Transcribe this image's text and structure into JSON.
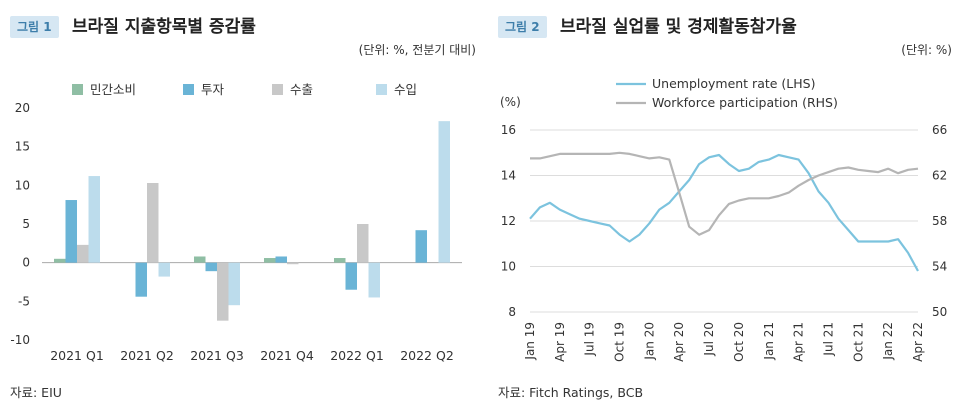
{
  "figures": [
    {
      "badge": "그림 1",
      "title": "브라질 지출항목별 증감률",
      "unit": "(단위: %, 전분기 대비)",
      "source": "자료: EIU"
    },
    {
      "badge": "그림 2",
      "title": "브라질 실업률 및 경제활동참가율",
      "unit": "(단위: %)",
      "source": "자료: Fitch Ratings, BCB"
    }
  ],
  "chart_data": [
    {
      "type": "bar",
      "categories": [
        "2021 Q1",
        "2021 Q2",
        "2021 Q3",
        "2021 Q4",
        "2022 Q1",
        "2022 Q2"
      ],
      "series": [
        {
          "name": "민간소비",
          "color": "#8fbea4",
          "values": [
            0.5,
            0.0,
            0.8,
            0.6,
            0.6,
            0.0
          ]
        },
        {
          "name": "투자",
          "color": "#6ab4d6",
          "values": [
            8.1,
            -4.4,
            -1.1,
            0.8,
            -3.5,
            4.2
          ]
        },
        {
          "name": "수출",
          "color": "#c8c8c8",
          "values": [
            2.3,
            10.3,
            -7.5,
            -0.2,
            5.0,
            0.0
          ]
        },
        {
          "name": "수입",
          "color": "#bcdcec",
          "values": [
            11.2,
            -1.8,
            -5.5,
            0.0,
            -4.5,
            18.3
          ]
        }
      ],
      "yticks": [
        "20",
        "15",
        "10",
        "5",
        "0",
        "-5",
        "-10"
      ],
      "ylim": [
        -10,
        20
      ],
      "legend": "top"
    },
    {
      "type": "line",
      "x": [
        "Jan 19",
        "Feb 19",
        "Mar 19",
        "Apr 19",
        "May 19",
        "Jun 19",
        "Jul 19",
        "Aug 19",
        "Sep 19",
        "Oct 19",
        "Nov 19",
        "Dec 19",
        "Jan 20",
        "Feb 20",
        "Mar 20",
        "Apr 20",
        "May 20",
        "Jun 20",
        "Jul 20",
        "Aug 20",
        "Sep 20",
        "Oct 20",
        "Nov 20",
        "Dec 20",
        "Jan 21",
        "Feb 21",
        "Mar 21",
        "Apr 21",
        "May 21",
        "Jun 21",
        "Jul 21",
        "Aug 21",
        "Sep 21",
        "Oct 21",
        "Nov 21",
        "Dec 21",
        "Jan 22",
        "Feb 22",
        "Mar 22",
        "Apr 22"
      ],
      "xtick_labels": [
        "Jan 19",
        "Apr 19",
        "Jul 19",
        "Oct 19",
        "Jan 20",
        "Apr 20",
        "Jul 20",
        "Oct 20",
        "Jan 21",
        "Apr 21",
        "Jul 21",
        "Oct 21",
        "Jan 22",
        "Apr 22"
      ],
      "series": [
        {
          "name": "Unemployment rate (LHS)",
          "axis": "left",
          "color": "#7cc3de",
          "values": [
            12.1,
            12.6,
            12.8,
            12.5,
            12.3,
            12.1,
            12.0,
            11.9,
            11.8,
            11.4,
            11.1,
            11.4,
            11.9,
            12.5,
            12.8,
            13.3,
            13.8,
            14.5,
            14.8,
            14.9,
            14.5,
            14.2,
            14.3,
            14.6,
            14.7,
            14.9,
            14.8,
            14.7,
            14.1,
            13.3,
            12.8,
            12.1,
            11.6,
            11.1,
            11.1,
            11.1,
            11.1,
            11.2,
            10.6,
            9.8
          ]
        },
        {
          "name": "Workforce participation (RHS)",
          "axis": "right",
          "color": "#b5b5b5",
          "values": [
            63.5,
            63.5,
            63.7,
            63.9,
            63.9,
            63.9,
            63.9,
            63.9,
            63.9,
            64.0,
            63.9,
            63.7,
            63.5,
            63.6,
            63.4,
            60.5,
            57.5,
            56.8,
            57.2,
            58.5,
            59.5,
            59.8,
            60.0,
            60.0,
            60.0,
            60.2,
            60.5,
            61.1,
            61.6,
            62.0,
            62.3,
            62.6,
            62.7,
            62.5,
            62.4,
            62.3,
            62.6,
            62.2,
            62.5,
            62.6
          ]
        }
      ],
      "ylabel_left": "(%)",
      "yticks_left": [
        "16",
        "14",
        "12",
        "10",
        "8"
      ],
      "ylim_left": [
        8,
        16
      ],
      "yticks_right": [
        "66",
        "62",
        "58",
        "54",
        "50"
      ],
      "ylim_right": [
        50,
        66
      ],
      "legend": "top",
      "grid": true
    }
  ]
}
